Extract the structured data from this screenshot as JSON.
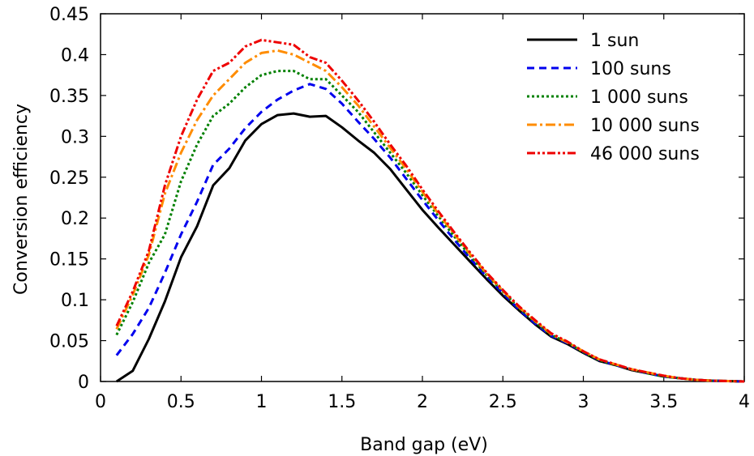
{
  "chart_data": {
    "type": "line",
    "title": "",
    "xlabel": "Band gap (eV)",
    "ylabel": "Conversion efficiency",
    "xlim": [
      0,
      4
    ],
    "ylim": [
      0,
      0.45
    ],
    "xticks": [
      0,
      0.5,
      1,
      1.5,
      2,
      2.5,
      3,
      3.5,
      4
    ],
    "xtick_labels": [
      "0",
      "0.5",
      "1",
      "1.5",
      "2",
      "2.5",
      "3",
      "3.5",
      "4"
    ],
    "yticks": [
      0,
      0.05,
      0.1,
      0.15,
      0.2,
      0.25,
      0.3,
      0.35,
      0.4,
      0.45
    ],
    "ytick_labels": [
      "0",
      "0.05",
      "0.1",
      "0.15",
      "0.2",
      "0.25",
      "0.3",
      "0.35",
      "0.4",
      "0.45"
    ],
    "grid": false,
    "legend_position": "top-right",
    "x": [
      0.1,
      0.2,
      0.3,
      0.4,
      0.5,
      0.6,
      0.7,
      0.8,
      0.9,
      1.0,
      1.1,
      1.2,
      1.3,
      1.4,
      1.5,
      1.6,
      1.7,
      1.8,
      1.9,
      2.0,
      2.1,
      2.2,
      2.3,
      2.4,
      2.5,
      2.6,
      2.7,
      2.8,
      2.9,
      3.0,
      3.1,
      3.2,
      3.3,
      3.4,
      3.5,
      3.6,
      3.7,
      3.8,
      3.9,
      4.0
    ],
    "series": [
      {
        "name": "1 sun",
        "color": "#000000",
        "dash": "solid",
        "values": [
          0.0,
          0.013,
          0.052,
          0.098,
          0.152,
          0.19,
          0.24,
          0.261,
          0.295,
          0.315,
          0.326,
          0.328,
          0.324,
          0.325,
          0.311,
          0.295,
          0.28,
          0.26,
          0.235,
          0.21,
          0.188,
          0.167,
          0.146,
          0.125,
          0.105,
          0.087,
          0.07,
          0.055,
          0.046,
          0.035,
          0.025,
          0.02,
          0.014,
          0.01,
          0.006,
          0.004,
          0.002,
          0.001,
          0.0005,
          0.0
        ]
      },
      {
        "name": "100 suns",
        "color": "#0000ee",
        "dash": "dash",
        "values": [
          0.032,
          0.058,
          0.09,
          0.133,
          0.18,
          0.22,
          0.265,
          0.285,
          0.31,
          0.33,
          0.345,
          0.356,
          0.364,
          0.358,
          0.34,
          0.318,
          0.297,
          0.274,
          0.248,
          0.222,
          0.197,
          0.173,
          0.15,
          0.128,
          0.108,
          0.088,
          0.071,
          0.056,
          0.047,
          0.036,
          0.026,
          0.02,
          0.015,
          0.01,
          0.006,
          0.004,
          0.002,
          0.001,
          0.0005,
          0.0
        ]
      },
      {
        "name": "1 000 suns",
        "color": "#008000",
        "dash": "dot",
        "values": [
          0.057,
          0.097,
          0.145,
          0.18,
          0.245,
          0.29,
          0.325,
          0.34,
          0.36,
          0.375,
          0.38,
          0.38,
          0.37,
          0.37,
          0.35,
          0.33,
          0.305,
          0.28,
          0.255,
          0.228,
          0.202,
          0.177,
          0.153,
          0.13,
          0.11,
          0.09,
          0.073,
          0.057,
          0.048,
          0.036,
          0.026,
          0.02,
          0.015,
          0.01,
          0.006,
          0.004,
          0.002,
          0.001,
          0.0005,
          0.0
        ]
      },
      {
        "name": "10 000 suns",
        "color": "#ff8c00",
        "dash": "dashdot",
        "values": [
          0.064,
          0.106,
          0.155,
          0.23,
          0.28,
          0.32,
          0.35,
          0.37,
          0.39,
          0.402,
          0.405,
          0.4,
          0.39,
          0.38,
          0.36,
          0.338,
          0.312,
          0.286,
          0.26,
          0.232,
          0.205,
          0.18,
          0.155,
          0.132,
          0.111,
          0.091,
          0.074,
          0.058,
          0.048,
          0.037,
          0.027,
          0.021,
          0.015,
          0.011,
          0.007,
          0.004,
          0.002,
          0.001,
          0.0005,
          0.0
        ]
      },
      {
        "name": "46 000 suns",
        "color": "#ee0000",
        "dash": "dashdotdot",
        "values": [
          0.068,
          0.11,
          0.16,
          0.24,
          0.3,
          0.345,
          0.38,
          0.39,
          0.41,
          0.418,
          0.415,
          0.412,
          0.397,
          0.39,
          0.368,
          0.344,
          0.318,
          0.29,
          0.264,
          0.235,
          0.208,
          0.182,
          0.157,
          0.133,
          0.112,
          0.092,
          0.075,
          0.059,
          0.049,
          0.037,
          0.027,
          0.021,
          0.015,
          0.011,
          0.007,
          0.004,
          0.002,
          0.001,
          0.0005,
          0.0
        ]
      }
    ]
  }
}
